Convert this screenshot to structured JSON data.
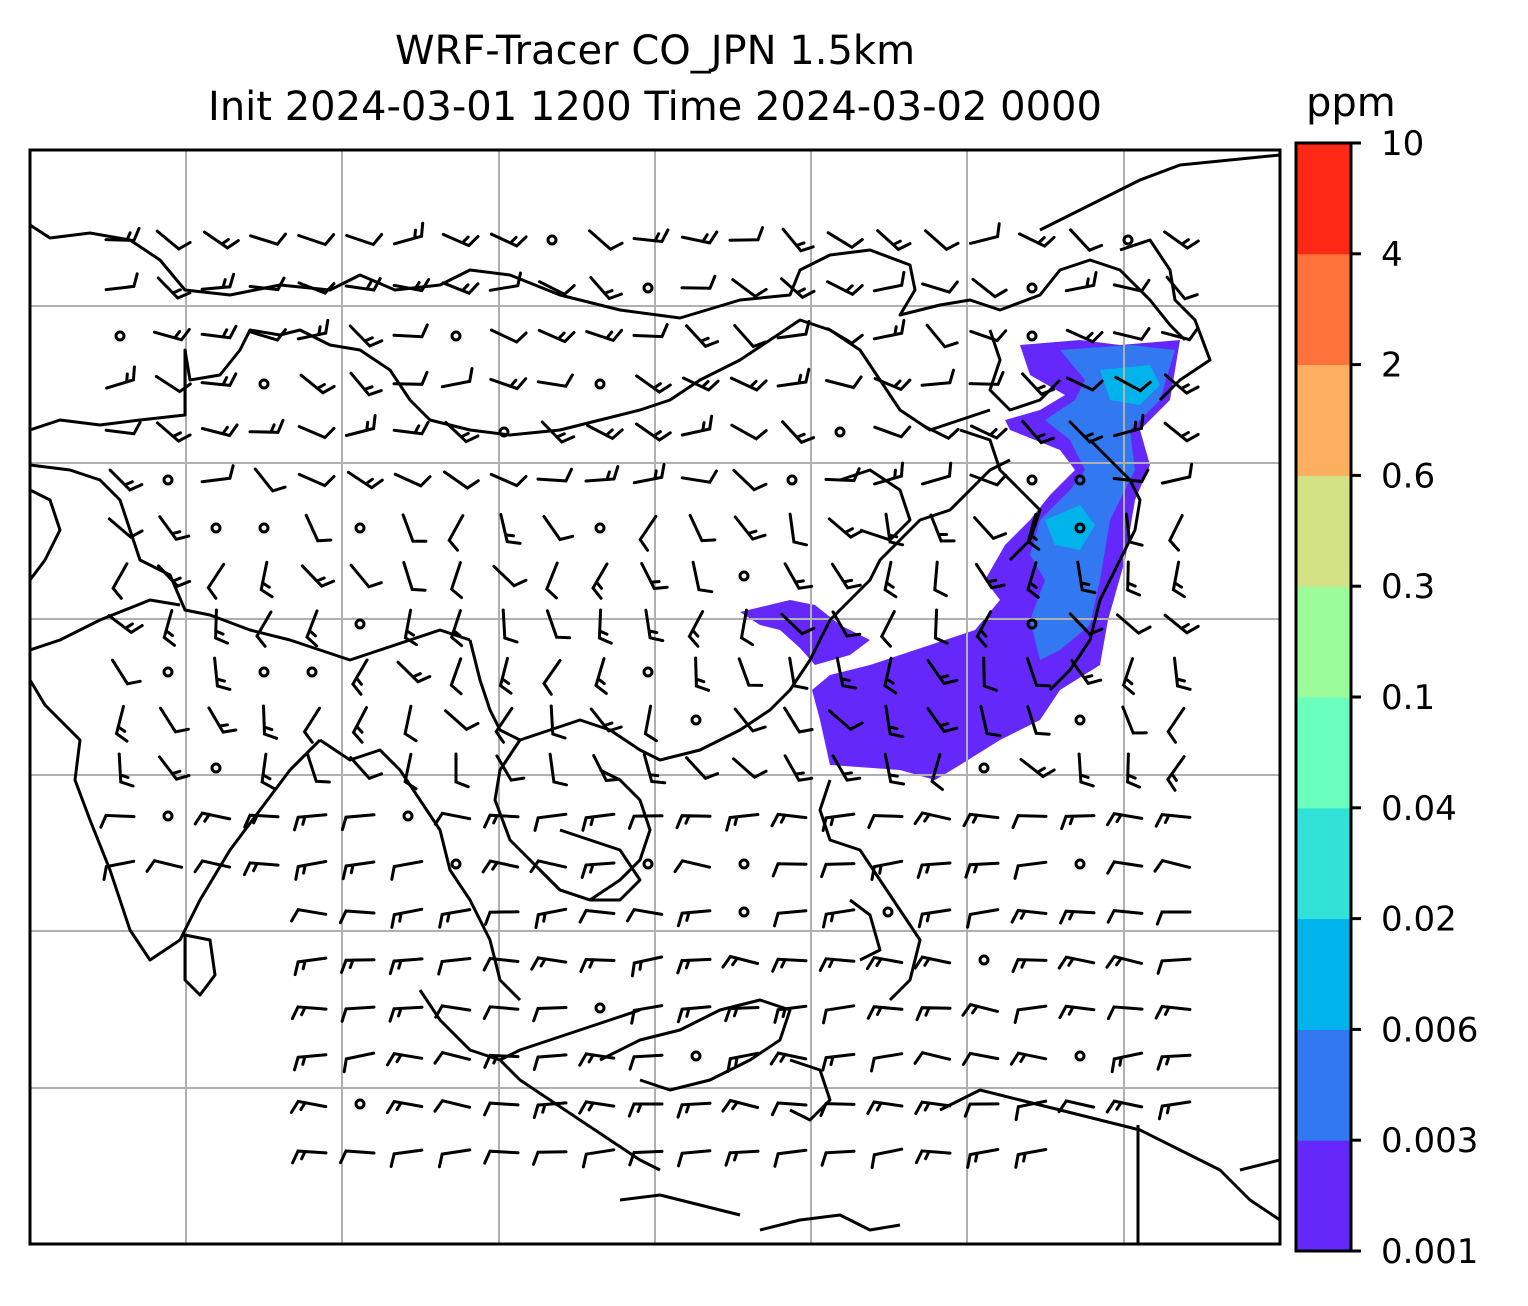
{
  "title_line1": "WRF-Tracer CO_JPN 1.5km",
  "title_line2": "Init 2024-03-01 1200 Time 2024-03-02 0000",
  "colorbar": {
    "units": "ppm",
    "labels": [
      "0.001",
      "0.003",
      "0.006",
      "0.02",
      "0.04",
      "0.1",
      "0.3",
      "0.6",
      "2",
      "4",
      "10"
    ],
    "colors": [
      "#6428fa",
      "#3278f0",
      "#00b4eb",
      "#32e1d7",
      "#6bffbe",
      "#9cfc9a",
      "#d2e285",
      "#fcaf5f",
      "#ff723a",
      "#ff2815"
    ]
  },
  "map": {
    "gridlines": true,
    "plume_colors": [
      "#6428fa",
      "#3278f0",
      "#00b4eb"
    ],
    "features": [
      "coastlines",
      "country borders",
      "wind barbs",
      "calm circles"
    ]
  }
}
